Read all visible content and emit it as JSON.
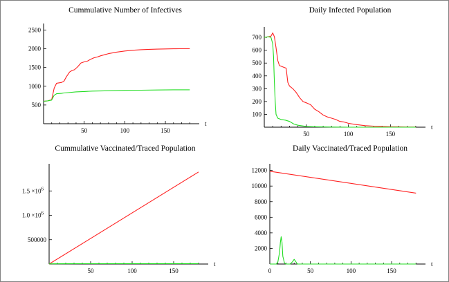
{
  "chart_data": [
    {
      "type": "line",
      "title": "Cummulative Number of Infectives",
      "xlabel": "t",
      "ylabel": "",
      "xlim": [
        0,
        190
      ],
      "ylim": [
        0,
        2600
      ],
      "xticks": [
        "50",
        "100",
        "150"
      ],
      "yticks": [
        "500",
        "1000",
        "1500",
        "2000",
        "2500"
      ],
      "grid": false,
      "series": [
        {
          "color": "#ff2020",
          "x": [
            0,
            5,
            10,
            13,
            16,
            22,
            25,
            28,
            32,
            35,
            38,
            42,
            46,
            50,
            54,
            58,
            62,
            66,
            70,
            75,
            80,
            90,
            100,
            110,
            120,
            130,
            140,
            150,
            160,
            170,
            180
          ],
          "y": [
            600,
            610,
            640,
            950,
            1080,
            1100,
            1130,
            1250,
            1380,
            1420,
            1440,
            1520,
            1620,
            1650,
            1670,
            1720,
            1760,
            1780,
            1810,
            1840,
            1870,
            1910,
            1940,
            1960,
            1975,
            1985,
            1990,
            1995,
            1998,
            2000,
            2000
          ]
        },
        {
          "color": "#22dd22",
          "x": [
            0,
            5,
            10,
            13,
            16,
            22,
            25,
            30,
            40,
            50,
            60,
            80,
            100,
            120,
            140,
            160,
            180
          ],
          "y": [
            600,
            610,
            630,
            760,
            800,
            810,
            820,
            830,
            850,
            860,
            870,
            880,
            890,
            895,
            900,
            905,
            905
          ]
        }
      ]
    },
    {
      "type": "line",
      "title": "Daily Infected Population",
      "xlabel": "t",
      "ylabel": "",
      "xlim": [
        0,
        190
      ],
      "ylim": [
        0,
        760
      ],
      "xticks": [
        "50",
        "100",
        "150"
      ],
      "yticks": [
        "100",
        "200",
        "300",
        "400",
        "500",
        "600",
        "700"
      ],
      "grid": false,
      "series": [
        {
          "color": "#ff2020",
          "x": [
            0,
            5,
            8,
            10,
            12,
            14,
            16,
            18,
            22,
            26,
            28,
            30,
            34,
            38,
            42,
            46,
            50,
            55,
            60,
            65,
            70,
            75,
            80,
            85,
            90,
            95,
            100,
            105,
            110,
            120,
            130,
            140,
            150,
            160,
            170,
            180
          ],
          "y": [
            700,
            705,
            710,
            735,
            705,
            620,
            520,
            480,
            470,
            460,
            350,
            320,
            300,
            270,
            230,
            200,
            190,
            175,
            140,
            120,
            95,
            80,
            70,
            60,
            45,
            40,
            30,
            25,
            20,
            12,
            8,
            5,
            3,
            2,
            1,
            1
          ]
        },
        {
          "color": "#22dd22",
          "x": [
            0,
            5,
            8,
            10,
            11,
            12,
            13,
            14,
            16,
            20,
            25,
            30,
            35,
            40,
            45,
            50,
            60,
            80,
            100,
            140,
            180
          ],
          "y": [
            700,
            705,
            700,
            650,
            550,
            350,
            200,
            100,
            70,
            60,
            55,
            45,
            25,
            15,
            10,
            5,
            3,
            1,
            0,
            0,
            0
          ]
        }
      ]
    },
    {
      "type": "line",
      "title": "Cummulative Vaccinated/Traced Population",
      "xlabel": "t",
      "ylabel": "",
      "xlim": [
        0,
        190
      ],
      "ylim": [
        0,
        2000000
      ],
      "xticks": [
        "50",
        "100",
        "150"
      ],
      "yticks": [
        {
          "value": 500000,
          "label": "500000"
        },
        {
          "value": 1000000,
          "label": "1.0 ×10",
          "exp": "6"
        },
        {
          "value": 1500000,
          "label": "1.5 ×10",
          "exp": "6"
        }
      ],
      "grid": false,
      "series": [
        {
          "color": "#ff2020",
          "x": [
            0,
            180
          ],
          "y": [
            0,
            1890000
          ]
        },
        {
          "color": "#22dd22",
          "x": [
            0,
            20,
            40,
            60,
            80,
            100,
            120,
            140,
            160,
            180
          ],
          "y": [
            4000,
            6000,
            7000,
            7500,
            8000,
            8000,
            8000,
            8000,
            8000,
            8000
          ]
        }
      ]
    },
    {
      "type": "line",
      "title": "Daily Vaccinated/Traced Population",
      "xlabel": "t",
      "ylabel": "",
      "xlim": [
        0,
        190
      ],
      "ylim": [
        0,
        12500
      ],
      "xticks": [
        "0",
        "50",
        "100",
        "150"
      ],
      "yticks": [
        "2000",
        "4000",
        "6000",
        "8000",
        "10000",
        "12000"
      ],
      "grid": false,
      "series": [
        {
          "color": "#ff2020",
          "x": [
            0,
            180
          ],
          "y": [
            11900,
            9100
          ]
        },
        {
          "color": "#22dd22",
          "x": [
            0,
            8,
            10,
            12,
            13,
            14,
            15,
            16,
            18,
            20,
            25,
            28,
            30,
            32,
            34,
            38,
            45,
            55,
            80,
            120,
            180
          ],
          "y": [
            0,
            0,
            300,
            1500,
            2800,
            3500,
            2800,
            1000,
            150,
            0,
            0,
            300,
            600,
            300,
            0,
            0,
            0,
            0,
            0,
            0,
            0
          ]
        }
      ]
    }
  ]
}
